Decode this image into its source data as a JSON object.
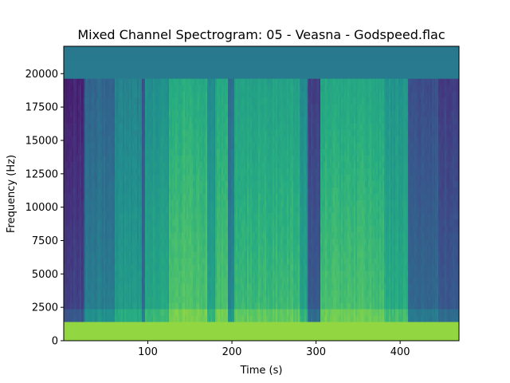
{
  "chart_data": {
    "type": "heatmap",
    "title": "Mixed Channel Spectrogram: 05 - Veasna - Godspeed.flac",
    "xlabel": "Time (s)",
    "ylabel": "Frequency (Hz)",
    "xlim": [
      0,
      470
    ],
    "ylim": [
      0,
      22050
    ],
    "x_ticks": [
      100,
      200,
      300,
      400
    ],
    "y_ticks": [
      0,
      2500,
      5000,
      7500,
      10000,
      12500,
      15000,
      17500,
      20000
    ],
    "colormap": "viridis",
    "grid": false,
    "bandwidth_cutoff_hz": 19800,
    "segments": [
      {
        "start": 0,
        "end": 25,
        "level": 0.22
      },
      {
        "start": 25,
        "end": 60,
        "level": 0.45
      },
      {
        "start": 60,
        "end": 92,
        "level": 0.56
      },
      {
        "start": 92,
        "end": 97,
        "level": 0.38
      },
      {
        "start": 97,
        "end": 125,
        "level": 0.62
      },
      {
        "start": 125,
        "end": 170,
        "level": 0.74
      },
      {
        "start": 170,
        "end": 180,
        "level": 0.6
      },
      {
        "start": 180,
        "end": 195,
        "level": 0.72
      },
      {
        "start": 195,
        "end": 203,
        "level": 0.48
      },
      {
        "start": 203,
        "end": 280,
        "level": 0.7
      },
      {
        "start": 280,
        "end": 290,
        "level": 0.6
      },
      {
        "start": 290,
        "end": 305,
        "level": 0.3
      },
      {
        "start": 305,
        "end": 380,
        "level": 0.72
      },
      {
        "start": 380,
        "end": 410,
        "level": 0.64
      },
      {
        "start": 410,
        "end": 445,
        "level": 0.36
      },
      {
        "start": 445,
        "end": 470,
        "level": 0.3
      }
    ]
  }
}
